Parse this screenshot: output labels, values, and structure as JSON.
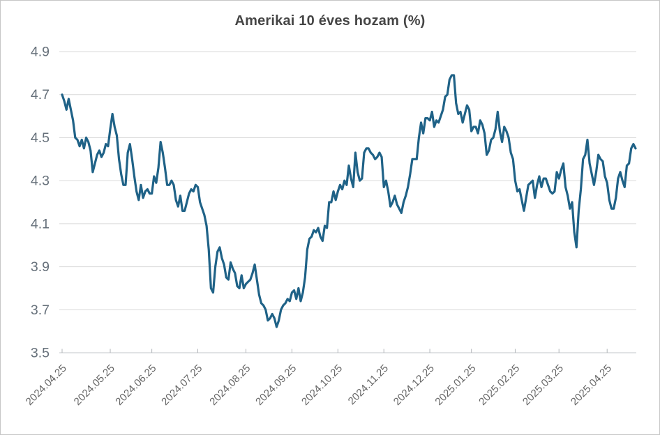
{
  "title": "Amerikai 10 éves hozam (%)",
  "colors": {
    "line": "#1f6287",
    "gridline": "#d9d9d9",
    "axis_line": "#c3c7cb",
    "tick_mark": "#b0b4b8",
    "y_tick_label": "#66707a",
    "x_tick_label": "#666666",
    "title": "#454545",
    "frame_border": "#c6c6c6",
    "background": "#ffffff"
  },
  "chart_data": {
    "type": "line",
    "title": "Amerikai 10 éves hozam (%)",
    "xlabel": "",
    "ylabel": "",
    "ylim": [
      3.5,
      4.9
    ],
    "y_tick_labels": [
      "4.9",
      "4.7",
      "4.5",
      "4.3",
      "4.1",
      "3.9",
      "3.7",
      "3.5"
    ],
    "x_tick_labels": [
      "2024.04.25",
      "2024.05.25",
      "2024.06.25",
      "2024.07.25",
      "2024.08.25",
      "2024.09.25",
      "2024.10.25",
      "2024.11.25",
      "2024.12.25",
      "2025.01.25",
      "2025.02.25",
      "2025.03.25",
      "2025.04.25"
    ],
    "grid": "horizontal-only",
    "legend": "none",
    "series": [
      {
        "name": "Amerikai 10 éves hozam",
        "dates": [
          "2024-04-25",
          "2024-04-26",
          "2024-04-29",
          "2024-04-30",
          "2024-05-01",
          "2024-05-02",
          "2024-05-03",
          "2024-05-06",
          "2024-05-07",
          "2024-05-08",
          "2024-05-09",
          "2024-05-10",
          "2024-05-13",
          "2024-05-14",
          "2024-05-15",
          "2024-05-16",
          "2024-05-17",
          "2024-05-20",
          "2024-05-21",
          "2024-05-22",
          "2024-05-23",
          "2024-05-24",
          "2024-05-28",
          "2024-05-29",
          "2024-05-30",
          "2024-05-31",
          "2024-06-03",
          "2024-06-04",
          "2024-06-05",
          "2024-06-06",
          "2024-06-07",
          "2024-06-10",
          "2024-06-11",
          "2024-06-12",
          "2024-06-13",
          "2024-06-14",
          "2024-06-17",
          "2024-06-18",
          "2024-06-20",
          "2024-06-21",
          "2024-06-24",
          "2024-06-25",
          "2024-06-26",
          "2024-06-27",
          "2024-06-28",
          "2024-07-01",
          "2024-07-02",
          "2024-07-03",
          "2024-07-05",
          "2024-07-08",
          "2024-07-09",
          "2024-07-10",
          "2024-07-11",
          "2024-07-12",
          "2024-07-15",
          "2024-07-16",
          "2024-07-17",
          "2024-07-18",
          "2024-07-19",
          "2024-07-22",
          "2024-07-23",
          "2024-07-24",
          "2024-07-25",
          "2024-07-26",
          "2024-07-29",
          "2024-07-30",
          "2024-07-31",
          "2024-08-01",
          "2024-08-02",
          "2024-08-05",
          "2024-08-06",
          "2024-08-07",
          "2024-08-08",
          "2024-08-09",
          "2024-08-12",
          "2024-08-13",
          "2024-08-14",
          "2024-08-15",
          "2024-08-16",
          "2024-08-19",
          "2024-08-20",
          "2024-08-21",
          "2024-08-22",
          "2024-08-23",
          "2024-08-26",
          "2024-08-27",
          "2024-08-28",
          "2024-08-29",
          "2024-08-30",
          "2024-09-03",
          "2024-09-04",
          "2024-09-05",
          "2024-09-06",
          "2024-09-09",
          "2024-09-10",
          "2024-09-11",
          "2024-09-12",
          "2024-09-13",
          "2024-09-16",
          "2024-09-17",
          "2024-09-18",
          "2024-09-19",
          "2024-09-20",
          "2024-09-23",
          "2024-09-24",
          "2024-09-25",
          "2024-09-26",
          "2024-09-27",
          "2024-09-30",
          "2024-10-01",
          "2024-10-02",
          "2024-10-03",
          "2024-10-04",
          "2024-10-07",
          "2024-10-08",
          "2024-10-09",
          "2024-10-10",
          "2024-10-11",
          "2024-10-15",
          "2024-10-16",
          "2024-10-17",
          "2024-10-18",
          "2024-10-21",
          "2024-10-22",
          "2024-10-23",
          "2024-10-24",
          "2024-10-25",
          "2024-10-28",
          "2024-10-29",
          "2024-10-30",
          "2024-10-31",
          "2024-11-01",
          "2024-11-04",
          "2024-11-05",
          "2024-11-06",
          "2024-11-07",
          "2024-11-08",
          "2024-11-11",
          "2024-11-12",
          "2024-11-13",
          "2024-11-14",
          "2024-11-15",
          "2024-11-18",
          "2024-11-19",
          "2024-11-20",
          "2024-11-21",
          "2024-11-22",
          "2024-11-25",
          "2024-11-26",
          "2024-11-27",
          "2024-11-29",
          "2024-12-02",
          "2024-12-03",
          "2024-12-04",
          "2024-12-05",
          "2024-12-06",
          "2024-12-09",
          "2024-12-10",
          "2024-12-11",
          "2024-12-12",
          "2024-12-13",
          "2024-12-16",
          "2024-12-17",
          "2024-12-18",
          "2024-12-19",
          "2024-12-20",
          "2024-12-23",
          "2024-12-24",
          "2024-12-26",
          "2024-12-27",
          "2024-12-30",
          "2024-12-31",
          "2025-01-02",
          "2025-01-03",
          "2025-01-06",
          "2025-01-07",
          "2025-01-08",
          "2025-01-10",
          "2025-01-13",
          "2025-01-14",
          "2025-01-15",
          "2025-01-16",
          "2025-01-17",
          "2025-01-21",
          "2025-01-22",
          "2025-01-23",
          "2025-01-24",
          "2025-01-27",
          "2025-01-28",
          "2025-01-29",
          "2025-01-30",
          "2025-01-31",
          "2025-02-03",
          "2025-02-04",
          "2025-02-05",
          "2025-02-06",
          "2025-02-07",
          "2025-02-10",
          "2025-02-11",
          "2025-02-12",
          "2025-02-13",
          "2025-02-14",
          "2025-02-18",
          "2025-02-19",
          "2025-02-20",
          "2025-02-21",
          "2025-02-24",
          "2025-02-25",
          "2025-02-26",
          "2025-02-27",
          "2025-02-28",
          "2025-03-03",
          "2025-03-04",
          "2025-03-05",
          "2025-03-06",
          "2025-03-07",
          "2025-03-10",
          "2025-03-11",
          "2025-03-12",
          "2025-03-13",
          "2025-03-14",
          "2025-03-17",
          "2025-03-18",
          "2025-03-19",
          "2025-03-20",
          "2025-03-21",
          "2025-03-24",
          "2025-03-25",
          "2025-03-26",
          "2025-03-27",
          "2025-03-28",
          "2025-03-31",
          "2025-04-01",
          "2025-04-02",
          "2025-04-03",
          "2025-04-04",
          "2025-04-07",
          "2025-04-08",
          "2025-04-09",
          "2025-04-10",
          "2025-04-11",
          "2025-04-14",
          "2025-04-15",
          "2025-04-16",
          "2025-04-17",
          "2025-04-21",
          "2025-04-22",
          "2025-04-23",
          "2025-04-24",
          "2025-04-25",
          "2025-04-28",
          "2025-04-29",
          "2025-04-30",
          "2025-05-01",
          "2025-05-02",
          "2025-05-05",
          "2025-05-06",
          "2025-05-07",
          "2025-05-08",
          "2025-05-09",
          "2025-05-12",
          "2025-05-13",
          "2025-05-14"
        ],
        "values": [
          4.7,
          4.67,
          4.63,
          4.68,
          4.63,
          4.58,
          4.5,
          4.49,
          4.46,
          4.49,
          4.45,
          4.5,
          4.48,
          4.44,
          4.34,
          4.38,
          4.42,
          4.44,
          4.41,
          4.43,
          4.47,
          4.46,
          4.54,
          4.61,
          4.55,
          4.51,
          4.4,
          4.33,
          4.28,
          4.28,
          4.43,
          4.47,
          4.4,
          4.32,
          4.25,
          4.21,
          4.28,
          4.22,
          4.25,
          4.26,
          4.24,
          4.24,
          4.32,
          4.29,
          4.36,
          4.48,
          4.43,
          4.36,
          4.28,
          4.28,
          4.3,
          4.28,
          4.21,
          4.18,
          4.23,
          4.16,
          4.16,
          4.2,
          4.24,
          4.26,
          4.25,
          4.28,
          4.27,
          4.2,
          4.17,
          4.14,
          4.09,
          3.98,
          3.8,
          3.78,
          3.9,
          3.97,
          3.99,
          3.94,
          3.91,
          3.85,
          3.84,
          3.92,
          3.89,
          3.87,
          3.81,
          3.8,
          3.86,
          3.8,
          3.82,
          3.83,
          3.84,
          3.87,
          3.91,
          3.84,
          3.77,
          3.73,
          3.72,
          3.7,
          3.65,
          3.66,
          3.68,
          3.66,
          3.62,
          3.65,
          3.7,
          3.72,
          3.73,
          3.75,
          3.74,
          3.78,
          3.79,
          3.75,
          3.8,
          3.74,
          3.78,
          3.85,
          3.98,
          4.03,
          4.04,
          4.07,
          4.06,
          4.08,
          4.04,
          4.02,
          4.09,
          4.08,
          4.2,
          4.2,
          4.25,
          4.21,
          4.25,
          4.28,
          4.26,
          4.3,
          4.28,
          4.37,
          4.31,
          4.27,
          4.43,
          4.34,
          4.3,
          4.31,
          4.43,
          4.45,
          4.45,
          4.43,
          4.42,
          4.4,
          4.41,
          4.43,
          4.41,
          4.27,
          4.3,
          4.25,
          4.18,
          4.2,
          4.23,
          4.19,
          4.17,
          4.15,
          4.2,
          4.23,
          4.27,
          4.33,
          4.4,
          4.4,
          4.4,
          4.5,
          4.57,
          4.52,
          4.59,
          4.59,
          4.58,
          4.62,
          4.55,
          4.58,
          4.57,
          4.6,
          4.63,
          4.69,
          4.7,
          4.77,
          4.79,
          4.79,
          4.66,
          4.61,
          4.62,
          4.57,
          4.61,
          4.65,
          4.63,
          4.53,
          4.55,
          4.55,
          4.52,
          4.58,
          4.56,
          4.52,
          4.42,
          4.44,
          4.49,
          4.5,
          4.54,
          4.62,
          4.53,
          4.48,
          4.55,
          4.53,
          4.5,
          4.43,
          4.4,
          4.3,
          4.25,
          4.26,
          4.21,
          4.16,
          4.22,
          4.28,
          4.29,
          4.3,
          4.22,
          4.28,
          4.32,
          4.27,
          4.31,
          4.31,
          4.28,
          4.25,
          4.24,
          4.25,
          4.34,
          4.31,
          4.35,
          4.38,
          4.27,
          4.23,
          4.17,
          4.2,
          4.06,
          3.99,
          4.16,
          4.26,
          4.4,
          4.42,
          4.49,
          4.38,
          4.33,
          4.28,
          4.34,
          4.42,
          4.4,
          4.39,
          4.32,
          4.29,
          4.21,
          4.17,
          4.17,
          4.22,
          4.31,
          4.34,
          4.3,
          4.27,
          4.37,
          4.38,
          4.45,
          4.47,
          4.45
        ]
      }
    ]
  }
}
